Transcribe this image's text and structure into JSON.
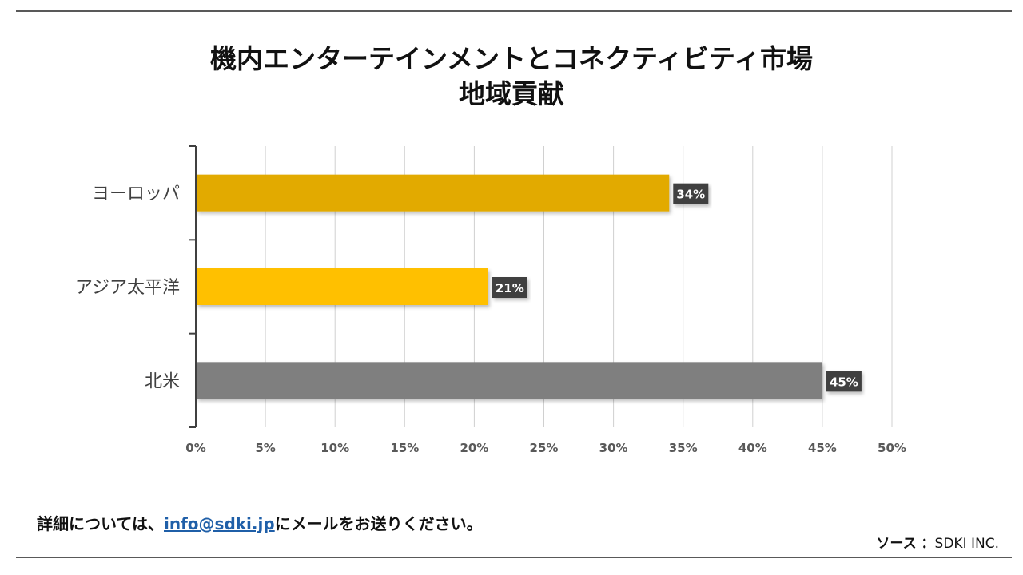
{
  "chart_data": {
    "type": "bar",
    "orientation": "horizontal",
    "title_lines": [
      "機内エンターテインメントとコネクティビティ市場",
      "地域貢献"
    ],
    "categories": [
      "ヨーロッパ",
      "アジア太平洋",
      "北米"
    ],
    "values": [
      34,
      21,
      45
    ],
    "data_labels": [
      "34%",
      "21%",
      "45%"
    ],
    "bar_colors": [
      "#e2aa00",
      "#ffc000",
      "#7f7f7f"
    ],
    "xlim": [
      0,
      50
    ],
    "x_ticks": [
      0,
      5,
      10,
      15,
      20,
      25,
      30,
      35,
      40,
      45,
      50
    ],
    "x_tick_labels": [
      "0%",
      "5%",
      "10%",
      "15%",
      "20%",
      "25%",
      "30%",
      "35%",
      "40%",
      "45%",
      "50%"
    ],
    "grid": "vertical",
    "legend": "none"
  },
  "footer": {
    "prefix": "詳細については、",
    "email": "info@sdki.jp",
    "suffix": "にメールをお送りください。"
  },
  "source": {
    "label": "ソース ：",
    "value": "SDKI INC."
  }
}
